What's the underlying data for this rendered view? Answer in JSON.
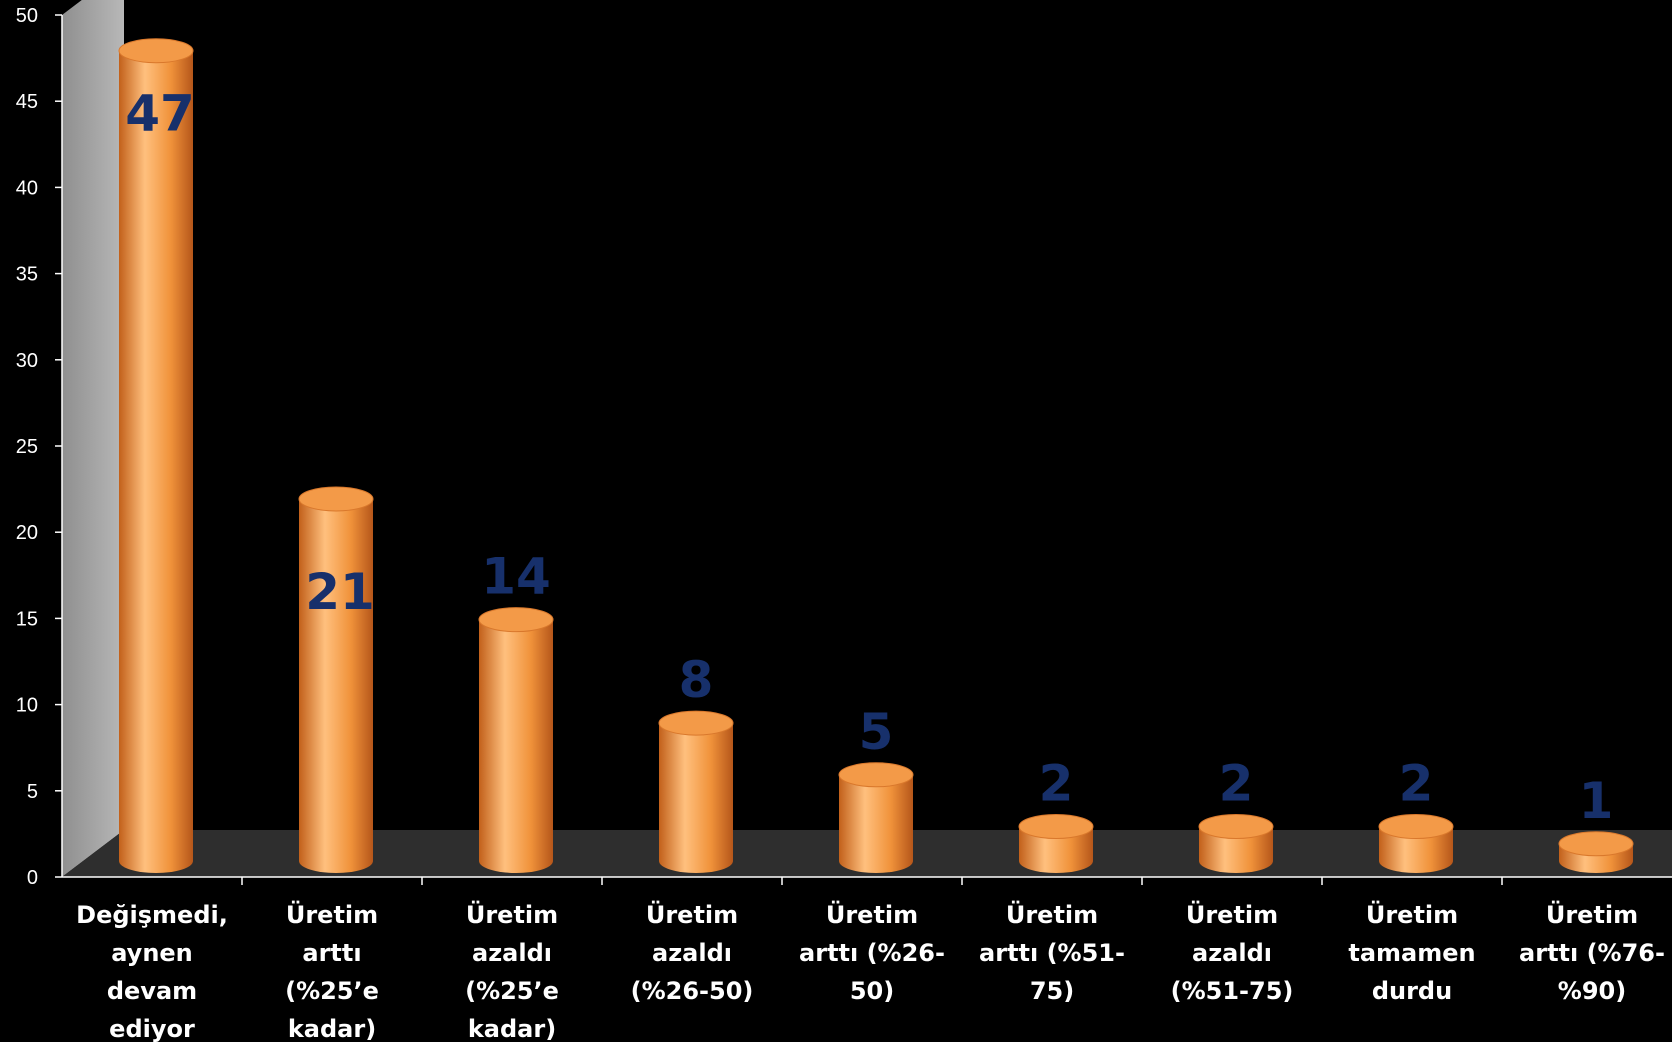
{
  "chart_data": {
    "type": "bar",
    "style": "3d-cylinder",
    "title": "",
    "xlabel": "",
    "ylabel": "",
    "ylim": [
      0,
      50
    ],
    "yticks": [
      0,
      5,
      10,
      15,
      20,
      25,
      30,
      35,
      40,
      45,
      50
    ],
    "grid": false,
    "legend": "none",
    "categories": [
      [
        "Değişmedi,",
        "aynen",
        "devam",
        "ediyor"
      ],
      [
        "Üretim",
        "arttı",
        "(%25’e",
        "kadar)"
      ],
      [
        "Üretim",
        "azaldı",
        "(%25’e",
        "kadar)"
      ],
      [
        "Üretim",
        "azaldı",
        "(%26-50)"
      ],
      [
        "Üretim",
        "arttı (%26-",
        "50)"
      ],
      [
        "Üretim",
        "arttı (%51-",
        "75)"
      ],
      [
        "Üretim",
        "azaldı",
        "(%51-75)"
      ],
      [
        "Üretim",
        "tamamen",
        "durdu"
      ],
      [
        "Üretim",
        "arttı (%76-",
        "%90)"
      ]
    ],
    "values": [
      47,
      21,
      14,
      8,
      5,
      2,
      2,
      2,
      1
    ],
    "data_labels": [
      "47",
      "21",
      "14",
      "8",
      "5",
      "2",
      "2",
      "2",
      "1"
    ],
    "colors": {
      "background": "#000000",
      "bar": "#f0923a",
      "bar_dark": "#c2601a",
      "bar_light": "#ffc07e",
      "wall": "#a6a6a6",
      "floor": "#2e2e2e",
      "axis_text": "#ffffff",
      "data_label": "#17306b"
    }
  }
}
